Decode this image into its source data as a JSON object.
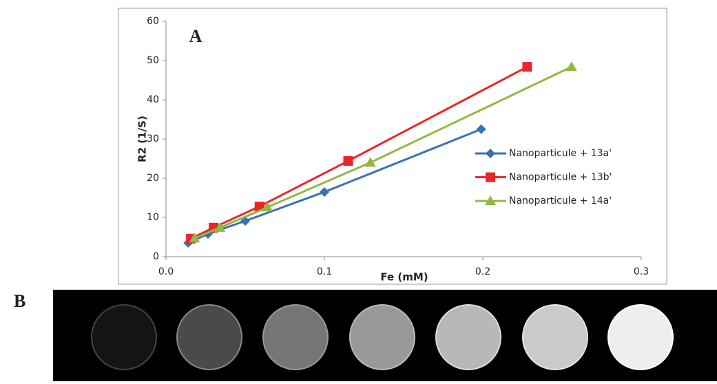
{
  "chart_data": {
    "type": "line",
    "annotation": "A",
    "x_label": "Fe (mM)",
    "y_label": "R2 (1/S)",
    "xlim": [
      0,
      0.3
    ],
    "ylim": [
      0,
      60
    ],
    "xticks": [
      {
        "value": 0,
        "label": "0.0"
      },
      0.1,
      0.2,
      0.3
    ],
    "yticks": [
      0,
      10,
      20,
      30,
      40,
      50,
      60
    ],
    "legend": "right",
    "series": [
      {
        "name": "Nanoparticule + 13a'",
        "color": "#3a70b4",
        "marker": "diamond",
        "x": [
          0.014,
          0.0265,
          0.05,
          0.1,
          0.199
        ],
        "values": [
          3.5,
          5.8,
          9.1,
          16.5,
          32.5
        ]
      },
      {
        "name": "Nanoparticule + 13b'",
        "color": "#e8262a",
        "marker": "square",
        "x": [
          0.0157,
          0.03,
          0.059,
          0.115,
          0.228
        ],
        "values": [
          4.6,
          7.4,
          12.8,
          24.4,
          48.4
        ]
      },
      {
        "name": "Nanoparticule + 14a'",
        "color": "#8fbb3e",
        "marker": "triangle",
        "x": [
          0.018,
          0.034,
          0.064,
          0.129,
          0.256
        ],
        "values": [
          4.7,
          7.4,
          12.6,
          24.0,
          48.4
        ]
      }
    ]
  },
  "panel_b_label": "B"
}
